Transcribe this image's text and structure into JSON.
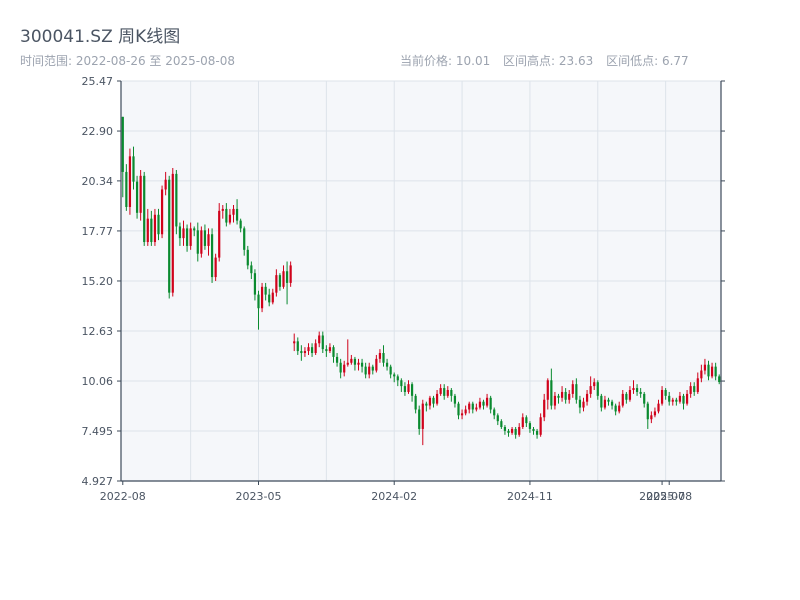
{
  "header": {
    "title": "300041.SZ 周K线图",
    "range_label": "时间范围: 2022-08-26 至 2025-08-08",
    "current_price": "当前价格: 10.01",
    "high": "区间高点: 23.63",
    "low": "区间低点: 6.77"
  },
  "colors": {
    "up": "#d0021b",
    "down": "#0a8a2f",
    "plot_bg": "#f5f7fa",
    "grid": "#dde3ea",
    "axis": "#3c4a5a"
  },
  "chart_data": {
    "type": "candlestick",
    "title": "300041.SZ 周K线图",
    "ylim": [
      4.927,
      25.47
    ],
    "yticks": [
      "4.927",
      "7.495",
      "10.06",
      "12.63",
      "15.20",
      "17.77",
      "20.34",
      "22.90",
      "25.47"
    ],
    "xticks": [
      {
        "label": "2022-08",
        "index": 0
      },
      {
        "label": "2023-05",
        "index": 38
      },
      {
        "label": "2024-02",
        "index": 76
      },
      {
        "label": "2024-11",
        "index": 114
      },
      {
        "label": "2025-07",
        "index": 151
      },
      {
        "label": "2025-08",
        "index": 153
      }
    ],
    "grid": true,
    "candles": [
      [
        23.63,
        20.8,
        23.63,
        19.5
      ],
      [
        20.8,
        19.0,
        21.2,
        18.8
      ],
      [
        19.0,
        21.6,
        22.0,
        18.6
      ],
      [
        21.6,
        20.3,
        22.1,
        19.9
      ],
      [
        20.3,
        18.7,
        20.6,
        18.4
      ],
      [
        18.7,
        20.6,
        20.9,
        18.3
      ],
      [
        20.6,
        17.2,
        20.8,
        17.0
      ],
      [
        17.2,
        18.4,
        18.9,
        17.0
      ],
      [
        18.4,
        17.2,
        18.8,
        17.0
      ],
      [
        17.2,
        18.6,
        18.9,
        17.0
      ],
      [
        18.6,
        17.6,
        18.9,
        17.3
      ],
      [
        17.6,
        19.9,
        20.1,
        17.4
      ],
      [
        19.9,
        20.4,
        20.8,
        19.6
      ],
      [
        20.4,
        14.6,
        20.6,
        14.3
      ],
      [
        14.6,
        20.7,
        21.0,
        14.4
      ],
      [
        20.7,
        18.0,
        20.9,
        17.6
      ],
      [
        18.0,
        17.4,
        18.2,
        17.0
      ],
      [
        17.4,
        17.9,
        18.3,
        17.0
      ],
      [
        17.9,
        17.0,
        18.1,
        16.7
      ],
      [
        17.0,
        17.9,
        18.2,
        16.8
      ],
      [
        17.9,
        17.8,
        18.0,
        17.5
      ],
      [
        17.8,
        16.6,
        18.2,
        16.2
      ],
      [
        16.6,
        17.8,
        18.0,
        16.4
      ],
      [
        17.8,
        17.0,
        18.1,
        16.8
      ],
      [
        17.0,
        17.6,
        17.9,
        16.5
      ],
      [
        17.6,
        15.4,
        17.9,
        15.1
      ],
      [
        15.4,
        16.4,
        16.6,
        15.2
      ],
      [
        16.4,
        18.8,
        19.2,
        16.2
      ],
      [
        18.8,
        18.9,
        19.1,
        18.4
      ],
      [
        18.9,
        18.2,
        19.2,
        18.0
      ],
      [
        18.2,
        18.6,
        18.9,
        18.1
      ],
      [
        18.6,
        18.9,
        19.1,
        18.2
      ],
      [
        18.9,
        18.3,
        19.4,
        18.1
      ],
      [
        18.3,
        17.9,
        18.4,
        17.7
      ],
      [
        17.9,
        16.8,
        18.0,
        16.5
      ],
      [
        16.8,
        16.0,
        17.0,
        15.8
      ],
      [
        16.0,
        15.6,
        16.2,
        15.3
      ],
      [
        15.6,
        14.5,
        15.8,
        14.2
      ],
      [
        14.5,
        13.8,
        14.7,
        12.7
      ],
      [
        13.8,
        14.9,
        15.1,
        13.6
      ],
      [
        14.9,
        14.5,
        15.1,
        14.2
      ],
      [
        14.5,
        14.1,
        14.8,
        13.9
      ],
      [
        14.1,
        14.6,
        14.8,
        14.0
      ],
      [
        14.6,
        15.5,
        15.8,
        14.4
      ],
      [
        15.5,
        14.9,
        15.6,
        14.7
      ],
      [
        14.9,
        15.7,
        16.0,
        14.8
      ],
      [
        15.7,
        15.1,
        16.2,
        14.0
      ],
      [
        15.1,
        16.0,
        16.2,
        14.9
      ],
      [
        12.0,
        12.1,
        12.5,
        11.6
      ],
      [
        12.1,
        11.6,
        12.3,
        11.4
      ],
      [
        11.6,
        11.5,
        11.9,
        11.1
      ],
      [
        11.5,
        11.6,
        11.8,
        11.3
      ],
      [
        11.6,
        11.8,
        12.0,
        11.4
      ],
      [
        11.8,
        11.5,
        12.0,
        11.3
      ],
      [
        11.5,
        12.0,
        12.2,
        11.4
      ],
      [
        12.0,
        12.4,
        12.6,
        11.8
      ],
      [
        12.4,
        11.7,
        12.6,
        11.5
      ],
      [
        11.7,
        11.6,
        11.9,
        11.3
      ],
      [
        11.6,
        11.8,
        12.0,
        11.5
      ],
      [
        11.8,
        11.3,
        11.9,
        11.0
      ],
      [
        11.3,
        11.0,
        11.5,
        10.8
      ],
      [
        11.0,
        10.5,
        11.2,
        10.2
      ],
      [
        10.5,
        10.9,
        11.1,
        10.3
      ],
      [
        10.9,
        11.0,
        12.2,
        10.8
      ],
      [
        11.0,
        11.2,
        11.4,
        10.9
      ],
      [
        11.2,
        10.9,
        11.3,
        10.6
      ],
      [
        10.9,
        11.0,
        11.2,
        10.6
      ],
      [
        11.0,
        10.8,
        11.2,
        10.5
      ],
      [
        10.8,
        10.4,
        11.0,
        10.2
      ],
      [
        10.4,
        10.8,
        11.0,
        10.2
      ],
      [
        10.8,
        10.6,
        10.9,
        10.4
      ],
      [
        10.6,
        11.2,
        11.4,
        10.5
      ],
      [
        11.2,
        11.5,
        11.7,
        11.0
      ],
      [
        11.5,
        11.0,
        11.9,
        10.8
      ],
      [
        11.0,
        10.8,
        11.2,
        10.6
      ],
      [
        10.8,
        10.4,
        10.9,
        10.2
      ],
      [
        10.4,
        10.3,
        10.5,
        10.0
      ],
      [
        10.3,
        10.1,
        10.4,
        9.8
      ],
      [
        10.1,
        9.8,
        10.2,
        9.5
      ],
      [
        9.8,
        9.5,
        10.0,
        9.3
      ],
      [
        9.5,
        9.9,
        10.1,
        9.4
      ],
      [
        9.9,
        9.3,
        10.0,
        9.0
      ],
      [
        9.3,
        8.6,
        9.4,
        8.4
      ],
      [
        8.6,
        7.6,
        8.8,
        7.3
      ],
      [
        7.6,
        8.9,
        9.1,
        6.77
      ],
      [
        8.9,
        8.8,
        9.0,
        8.5
      ],
      [
        8.8,
        9.2,
        9.3,
        8.6
      ],
      [
        9.2,
        8.9,
        9.3,
        8.7
      ],
      [
        8.9,
        9.4,
        9.6,
        8.8
      ],
      [
        9.4,
        9.7,
        9.9,
        9.3
      ],
      [
        9.7,
        9.3,
        9.9,
        9.1
      ],
      [
        9.3,
        9.6,
        9.8,
        9.2
      ],
      [
        9.6,
        9.3,
        9.7,
        9.0
      ],
      [
        9.3,
        8.9,
        9.4,
        8.7
      ],
      [
        8.9,
        8.3,
        9.0,
        8.1
      ],
      [
        8.3,
        8.4,
        8.6,
        8.1
      ],
      [
        8.4,
        8.6,
        8.8,
        8.3
      ],
      [
        8.6,
        8.9,
        9.0,
        8.4
      ],
      [
        8.9,
        8.6,
        9.0,
        8.4
      ],
      [
        8.6,
        8.7,
        8.9,
        8.5
      ],
      [
        8.7,
        9.0,
        9.2,
        8.6
      ],
      [
        9.0,
        8.8,
        9.1,
        8.6
      ],
      [
        8.8,
        9.2,
        9.4,
        8.7
      ],
      [
        9.2,
        8.6,
        9.3,
        8.4
      ],
      [
        8.6,
        8.3,
        8.7,
        8.1
      ],
      [
        8.3,
        8.0,
        8.4,
        7.8
      ],
      [
        8.0,
        7.7,
        8.1,
        7.6
      ],
      [
        7.7,
        7.5,
        7.8,
        7.3
      ],
      [
        7.5,
        7.4,
        7.6,
        7.2
      ],
      [
        7.4,
        7.6,
        7.7,
        7.3
      ],
      [
        7.6,
        7.3,
        7.7,
        7.1
      ],
      [
        7.3,
        7.7,
        7.9,
        7.2
      ],
      [
        7.7,
        8.2,
        8.4,
        7.6
      ],
      [
        8.2,
        7.9,
        8.3,
        7.7
      ],
      [
        7.9,
        7.6,
        8.0,
        7.4
      ],
      [
        7.6,
        7.5,
        7.7,
        7.3
      ],
      [
        7.5,
        7.3,
        7.6,
        7.1
      ],
      [
        7.3,
        8.2,
        8.4,
        7.2
      ],
      [
        8.2,
        9.1,
        9.4,
        8.0
      ],
      [
        9.1,
        10.1,
        10.2,
        8.6
      ],
      [
        10.1,
        8.8,
        10.7,
        8.6
      ],
      [
        8.8,
        9.3,
        9.5,
        8.6
      ],
      [
        9.3,
        9.2,
        9.4,
        8.9
      ],
      [
        9.2,
        9.5,
        9.8,
        9.0
      ],
      [
        9.5,
        9.1,
        9.7,
        8.9
      ],
      [
        9.1,
        9.4,
        9.6,
        8.9
      ],
      [
        9.4,
        9.9,
        10.1,
        9.2
      ],
      [
        9.9,
        9.1,
        10.2,
        8.9
      ],
      [
        9.1,
        8.7,
        9.3,
        8.4
      ],
      [
        8.7,
        9.0,
        9.2,
        8.5
      ],
      [
        9.0,
        9.4,
        9.6,
        8.8
      ],
      [
        9.4,
        9.8,
        10.3,
        9.2
      ],
      [
        9.8,
        10.0,
        10.2,
        9.6
      ],
      [
        10.0,
        9.3,
        10.1,
        9.1
      ],
      [
        9.3,
        8.7,
        9.4,
        8.5
      ],
      [
        8.7,
        9.1,
        9.3,
        8.6
      ],
      [
        9.1,
        9.0,
        9.2,
        8.8
      ],
      [
        9.0,
        8.8,
        9.1,
        8.6
      ],
      [
        8.8,
        8.5,
        8.9,
        8.3
      ],
      [
        8.5,
        8.8,
        9.0,
        8.4
      ],
      [
        8.8,
        9.4,
        9.6,
        8.7
      ],
      [
        9.4,
        9.1,
        9.5,
        8.9
      ],
      [
        9.1,
        9.6,
        9.8,
        9.0
      ],
      [
        9.6,
        9.7,
        10.1,
        9.4
      ],
      [
        9.7,
        9.5,
        9.9,
        9.3
      ],
      [
        9.5,
        9.4,
        9.7,
        9.2
      ],
      [
        9.4,
        8.9,
        9.5,
        8.7
      ],
      [
        8.9,
        8.1,
        9.0,
        7.6
      ],
      [
        8.1,
        8.3,
        8.5,
        7.9
      ],
      [
        8.3,
        8.5,
        8.7,
        8.2
      ],
      [
        8.5,
        8.9,
        9.1,
        8.4
      ],
      [
        8.9,
        9.6,
        9.8,
        8.8
      ],
      [
        9.6,
        9.3,
        9.7,
        9.1
      ],
      [
        9.3,
        9.0,
        9.5,
        8.8
      ],
      [
        9.0,
        9.1,
        9.2,
        8.8
      ],
      [
        9.1,
        9.0,
        9.2,
        8.8
      ],
      [
        9.0,
        9.3,
        9.5,
        8.9
      ],
      [
        9.3,
        8.9,
        9.4,
        8.6
      ],
      [
        8.9,
        9.4,
        9.6,
        8.8
      ],
      [
        9.4,
        9.8,
        10.0,
        9.2
      ],
      [
        9.8,
        9.5,
        10.0,
        9.3
      ],
      [
        9.5,
        10.2,
        10.5,
        9.4
      ],
      [
        10.2,
        10.6,
        10.9,
        10.0
      ],
      [
        10.6,
        10.9,
        11.2,
        10.4
      ],
      [
        10.9,
        10.3,
        11.1,
        10.1
      ],
      [
        10.3,
        10.8,
        11.0,
        10.2
      ],
      [
        10.8,
        10.3,
        11.0,
        10.1
      ],
      [
        10.3,
        10.01,
        10.4,
        9.9
      ]
    ]
  }
}
